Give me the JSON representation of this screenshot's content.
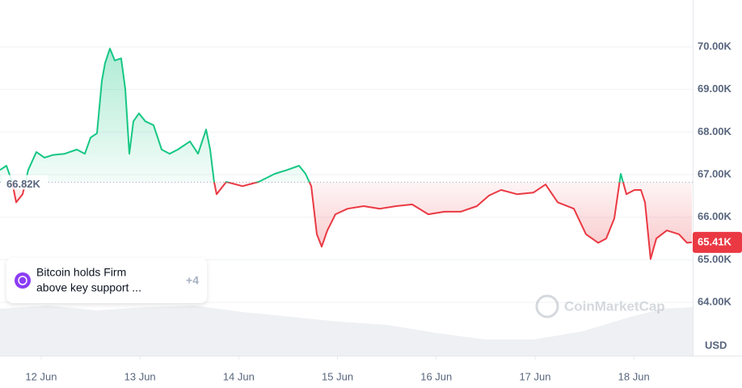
{
  "chart_data": {
    "type": "line",
    "x": [
      11.583,
      11.648,
      11.706,
      11.747,
      11.812,
      11.869,
      11.951,
      12.033,
      12.115,
      12.238,
      12.36,
      12.442,
      12.5,
      12.565,
      12.614,
      12.647,
      12.696,
      12.745,
      12.81,
      12.851,
      12.892,
      12.933,
      12.99,
      13.056,
      13.138,
      13.22,
      13.301,
      13.383,
      13.506,
      13.588,
      13.67,
      13.711,
      13.751,
      13.776,
      13.874,
      14.038,
      14.202,
      14.365,
      14.488,
      14.611,
      14.676,
      14.734,
      14.791,
      14.84,
      14.897,
      14.979,
      15.102,
      15.265,
      15.429,
      15.593,
      15.756,
      15.92,
      16.084,
      16.247,
      16.411,
      16.534,
      16.656,
      16.82,
      16.984,
      17.107,
      17.229,
      17.393,
      17.516,
      17.639,
      17.72,
      17.802,
      17.868,
      17.925,
      18.007,
      18.072,
      18.113,
      18.17,
      18.228,
      18.334,
      18.457,
      18.539,
      18.588
    ],
    "series": [
      {
        "name": "BTC",
        "color_up": "#16c784",
        "color_down": "#ea3943",
        "values": [
          67110,
          67210,
          66830,
          66350,
          66540,
          67110,
          67530,
          67400,
          67460,
          67490,
          67590,
          67490,
          67870,
          67970,
          69200,
          69620,
          69960,
          69680,
          69730,
          69010,
          67490,
          68250,
          68440,
          68250,
          68160,
          67590,
          67490,
          67590,
          67780,
          67490,
          68060,
          67590,
          66830,
          66540,
          66830,
          66730,
          66830,
          67020,
          67110,
          67210,
          67020,
          66730,
          65600,
          65310,
          65690,
          66070,
          66200,
          66260,
          66200,
          66260,
          66300,
          66070,
          66130,
          66130,
          66260,
          66510,
          66640,
          66540,
          66580,
          66770,
          66350,
          66200,
          65600,
          65400,
          65500,
          65970,
          67020,
          66540,
          66640,
          66640,
          66350,
          65020,
          65500,
          65690,
          65600,
          65400,
          65410
        ]
      }
    ],
    "xlim": [
      11.583,
      18.596
    ],
    "xticks": [
      {
        "value": 12,
        "label": "12 Jun"
      },
      {
        "value": 13,
        "label": "13 Jun"
      },
      {
        "value": 14,
        "label": "14 Jun"
      },
      {
        "value": 15,
        "label": "15 Jun"
      },
      {
        "value": 16,
        "label": "16 Jun"
      },
      {
        "value": 17,
        "label": "17 Jun"
      },
      {
        "value": 18,
        "label": "18 Jun"
      }
    ],
    "ylim": [
      62750,
      71100
    ],
    "yticks": [
      {
        "value": 64000,
        "label": "64.00K"
      },
      {
        "value": 65000,
        "label": "65.00K"
      },
      {
        "value": 66000,
        "label": "66.00K"
      },
      {
        "value": 67000,
        "label": "67.00K"
      },
      {
        "value": 68000,
        "label": "68.00K"
      },
      {
        "value": 69000,
        "label": "69.00K"
      },
      {
        "value": 70000,
        "label": "70.00K"
      }
    ],
    "grid": true,
    "y_unit": "USD",
    "baseline": {
      "value": 66820,
      "label": "66.82K"
    },
    "last_price": {
      "value": 65410,
      "label": "65.41K"
    },
    "news": {
      "lines": [
        "Bitcoin holds Firm",
        "above key support ..."
      ],
      "more": "+4"
    },
    "watermark": "CoinMarketCap"
  }
}
